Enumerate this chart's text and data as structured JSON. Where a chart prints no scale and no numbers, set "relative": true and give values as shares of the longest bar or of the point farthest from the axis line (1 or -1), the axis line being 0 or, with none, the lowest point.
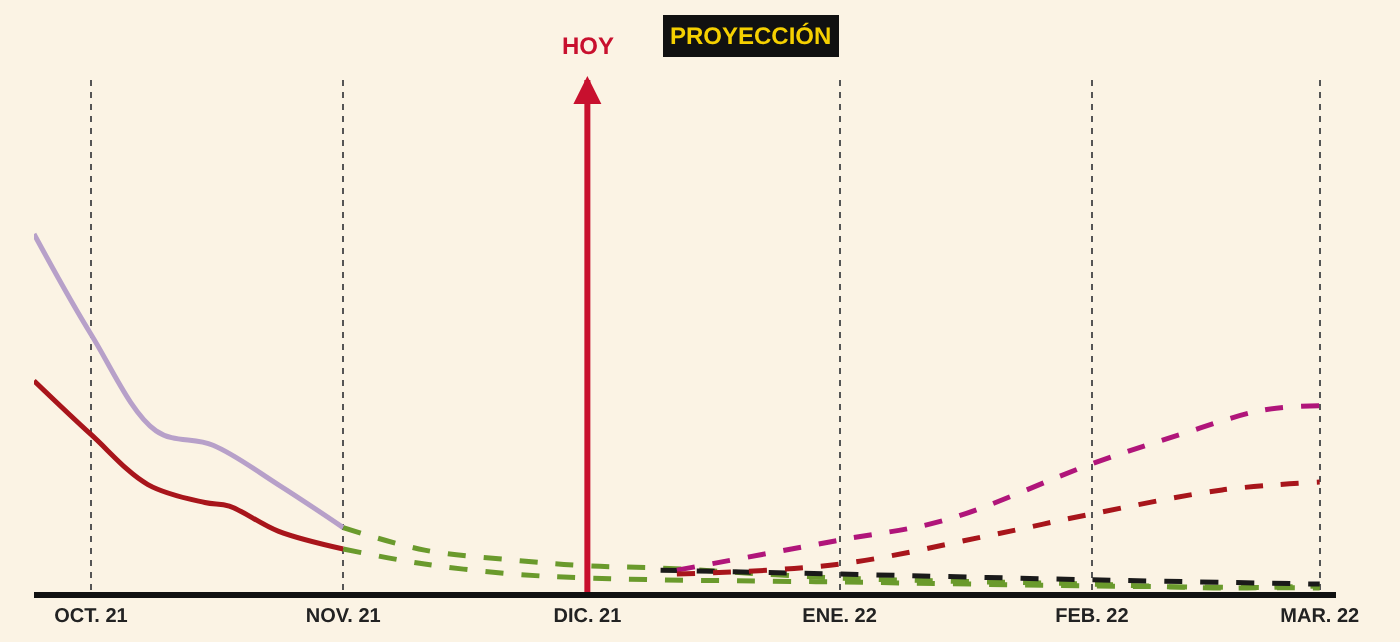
{
  "chart_data": {
    "type": "line",
    "relative": true,
    "grid": "x",
    "xlim": [
      "2021-09-24",
      "2022-03-03"
    ],
    "xticks": [
      {
        "value": "2021-10-01",
        "label": "OCT. 21"
      },
      {
        "value": "2021-11-01",
        "label": "NOV. 21"
      },
      {
        "value": "2021-12-01",
        "label": "DIC. 21"
      },
      {
        "value": "2022-01-01",
        "label": "ENE. 22"
      },
      {
        "value": "2022-02-01",
        "label": "FEB. 22"
      },
      {
        "value": "2022-03-01",
        "label": "MAR. 22"
      }
    ],
    "annotations": [
      "PROYECCIÓN"
    ],
    "ref_lines": [
      {
        "axis": "x",
        "value": "2021-12-01",
        "label": "HOY",
        "color": "#c8102e"
      }
    ],
    "series": [
      {
        "color": "#b7a0c9",
        "line_style": "solid",
        "x": [
          "2021-09-24",
          "2021-10-01",
          "2021-10-09",
          "2021-10-16",
          "2021-10-24",
          "2021-11-01"
        ],
        "values": [
          1.0,
          0.72,
          0.45,
          0.41,
          0.3,
          0.18
        ]
      },
      {
        "color": "#a8151b",
        "line_style": "solid",
        "x": [
          "2021-09-24",
          "2021-10-01",
          "2021-10-08",
          "2021-10-15",
          "2021-10-18",
          "2021-10-24",
          "2021-11-01"
        ],
        "values": [
          0.59,
          0.44,
          0.3,
          0.25,
          0.24,
          0.17,
          0.12
        ]
      },
      {
        "color": "#6a9a2c",
        "line_style": "dashed",
        "x": [
          "2021-11-01",
          "2021-11-11",
          "2021-11-22",
          "2021-12-01",
          "2021-12-10",
          "2022-01-01",
          "2022-02-01",
          "2022-02-17",
          "2022-03-01"
        ],
        "values": [
          0.18,
          0.117,
          0.089,
          0.073,
          0.067,
          0.039,
          0.022,
          0.011,
          0.017
        ]
      },
      {
        "color": "#6a9a2c",
        "line_style": "dashed",
        "x": [
          "2021-11-01",
          "2021-11-11",
          "2021-11-22",
          "2021-12-01",
          "2021-12-10",
          "2022-01-01",
          "2022-02-01",
          "2022-03-01"
        ],
        "values": [
          0.12,
          0.078,
          0.05,
          0.039,
          0.034,
          0.028,
          0.017,
          0.011
        ]
      },
      {
        "color": "#1a1a1a",
        "line_style": "dashed",
        "x": [
          "2021-12-10",
          "2022-01-01",
          "2022-02-01",
          "2022-03-01"
        ],
        "values": [
          0.061,
          0.05,
          0.034,
          0.022
        ]
      },
      {
        "color": "#b0157a",
        "line_style": "dashed",
        "x": [
          "2021-12-12",
          "2022-01-01",
          "2022-01-14",
          "2022-02-01",
          "2022-02-12",
          "2022-02-22",
          "2022-03-01"
        ],
        "values": [
          0.061,
          0.145,
          0.201,
          0.358,
          0.441,
          0.508,
          0.52
        ]
      },
      {
        "color": "#a8151b",
        "line_style": "dashed",
        "x": [
          "2021-12-12",
          "2022-01-01",
          "2022-01-19",
          "2022-02-01",
          "2022-02-17",
          "2022-03-01"
        ],
        "values": [
          0.05,
          0.078,
          0.156,
          0.218,
          0.285,
          0.307
        ]
      }
    ]
  }
}
